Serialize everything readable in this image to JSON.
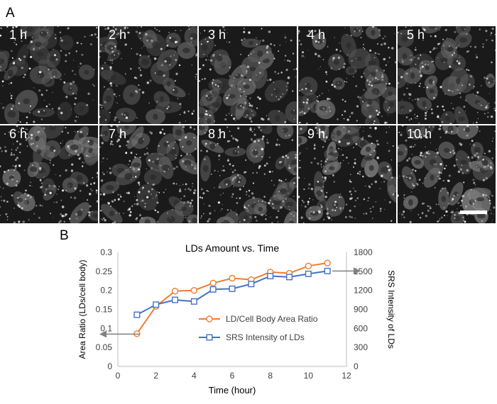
{
  "figure": {
    "panel_a_label": "A",
    "panel_b_label": "B",
    "scale_bar_visible": true
  },
  "micrographs": [
    {
      "label": "1 h",
      "brightness": 0.32
    },
    {
      "label": "2 h",
      "brightness": 0.38
    },
    {
      "label": "3 h",
      "brightness": 0.48
    },
    {
      "label": "4 h",
      "brightness": 0.5
    },
    {
      "label": "5 h",
      "brightness": 0.54
    },
    {
      "label": "6 h",
      "brightness": 0.62
    },
    {
      "label": "7 h",
      "brightness": 0.6
    },
    {
      "label": "8 h",
      "brightness": 0.65
    },
    {
      "label": "9 h",
      "brightness": 0.66
    },
    {
      "label": "10 h",
      "brightness": 0.7
    }
  ],
  "chart_data": {
    "type": "line",
    "title": "LDs Amount vs. Time",
    "xlabel": "Time (hour)",
    "ylabel": "Area Ratio (LDs/cell body)",
    "y2label": "SRS Intensity of LDs",
    "xlim": [
      0,
      12
    ],
    "xticks": [
      0,
      2,
      4,
      6,
      8,
      10,
      12
    ],
    "ylim": [
      0,
      0.3
    ],
    "yticks": [
      0,
      0.05,
      0.1,
      0.15,
      0.2,
      0.25,
      0.3
    ],
    "y2lim": [
      0,
      1800
    ],
    "y2ticks": [
      0,
      300,
      600,
      900,
      1200,
      1500,
      1800
    ],
    "grid": false,
    "legend_position": "center-right",
    "series": [
      {
        "name": "LD/Cell Body Area Ratio",
        "axis": "left",
        "marker": "circle",
        "color": "#ED7D31",
        "x": [
          1,
          2,
          3,
          4,
          5,
          6,
          7,
          8,
          9,
          10,
          11
        ],
        "y": [
          0.086,
          0.158,
          0.198,
          0.2,
          0.219,
          0.232,
          0.228,
          0.248,
          0.245,
          0.264,
          0.272
        ]
      },
      {
        "name": "SRS Intensity of LDs",
        "axis": "right",
        "marker": "square",
        "color": "#4472C4",
        "x": [
          1,
          2,
          3,
          4,
          5,
          6,
          7,
          8,
          9,
          10,
          11
        ],
        "y": [
          815,
          975,
          1050,
          1025,
          1215,
          1225,
          1300,
          1425,
          1410,
          1460,
          1505
        ]
      }
    ],
    "arrows": [
      {
        "target": "left_series",
        "direction": "left",
        "color": "#808080"
      },
      {
        "target": "right_series",
        "direction": "right",
        "color": "#808080"
      }
    ]
  }
}
